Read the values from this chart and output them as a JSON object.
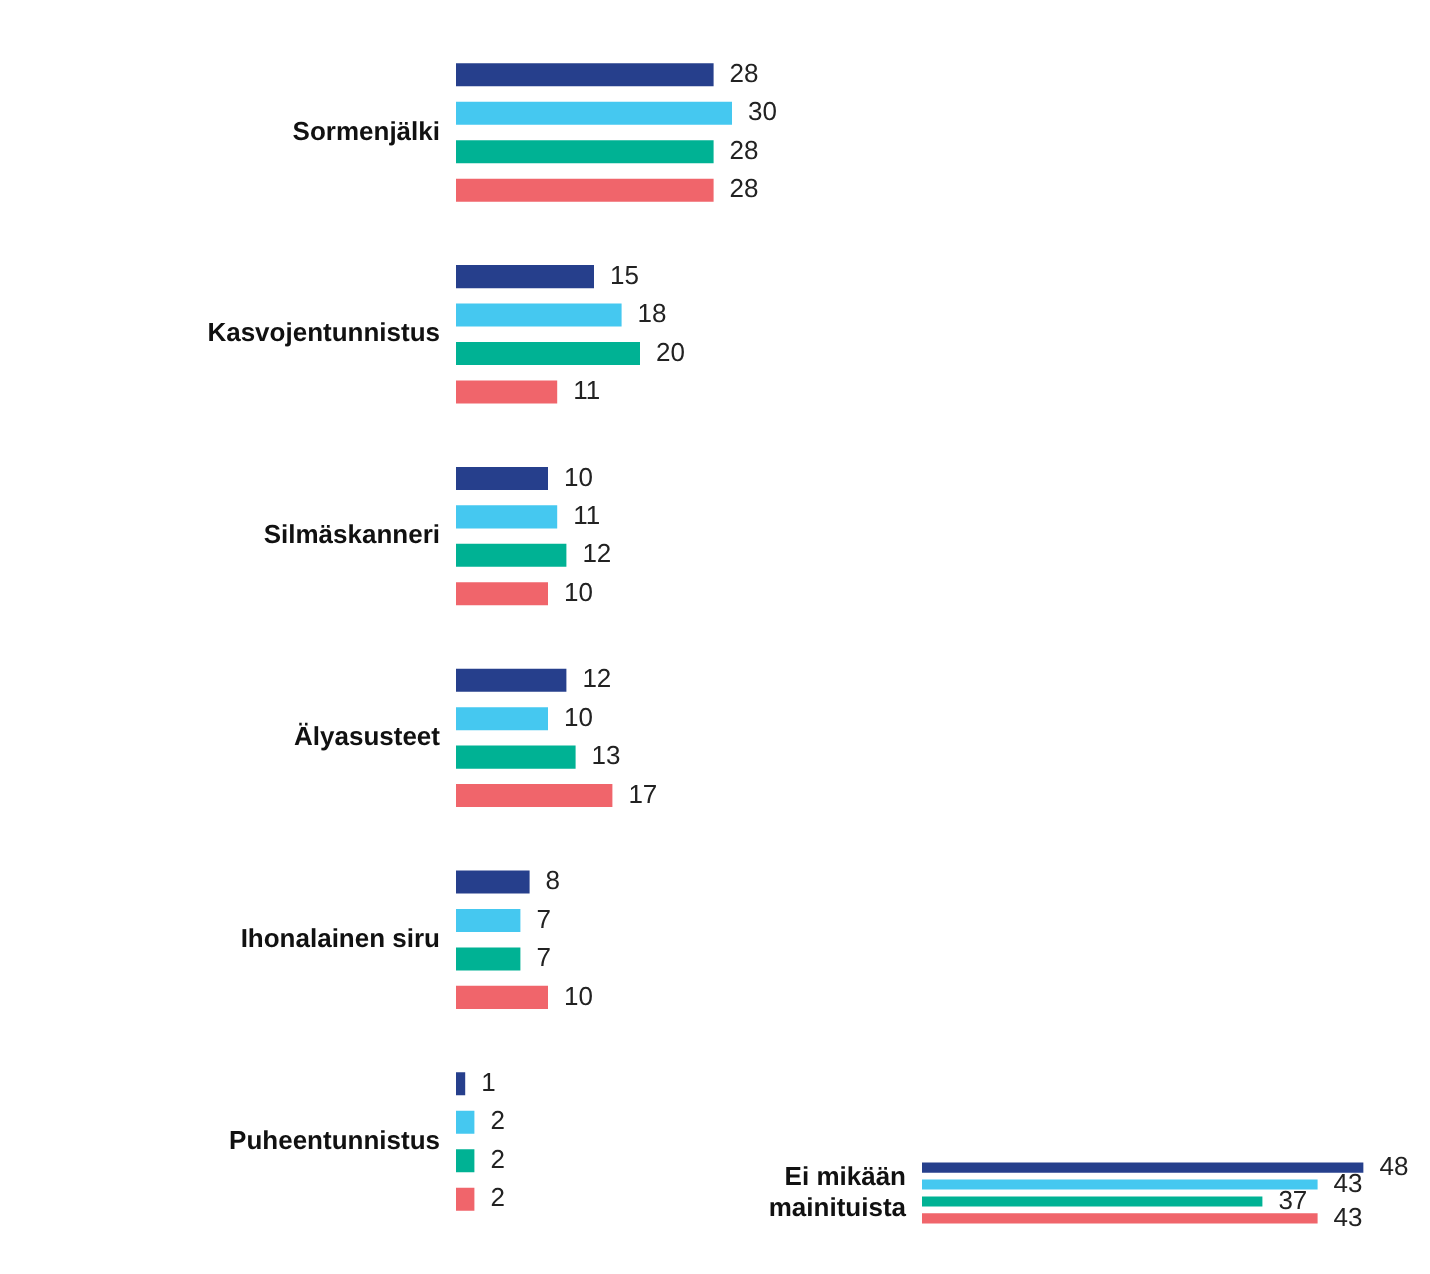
{
  "chart_data": [
    {
      "type": "bar",
      "orientation": "horizontal",
      "categories": [
        "Sormenjälki",
        "Kasvojentunnistus",
        "Silmäskanneri",
        "Älyasusteet",
        "Ihonalainen siru",
        "Puheentunnistus"
      ],
      "series": [
        {
          "color": "#263f8c",
          "values": [
            28,
            15,
            10,
            12,
            8,
            1
          ]
        },
        {
          "color": "#45c8f0",
          "values": [
            30,
            18,
            11,
            10,
            7,
            2
          ]
        },
        {
          "color": "#00b294",
          "values": [
            28,
            20,
            12,
            13,
            7,
            2
          ]
        },
        {
          "color": "#f0656b",
          "values": [
            28,
            11,
            10,
            17,
            10,
            2
          ]
        }
      ],
      "data_labels": true,
      "tick_labels": "y",
      "grid": false,
      "legend": false
    },
    {
      "type": "bar",
      "orientation": "horizontal",
      "categories": [
        "Ei mikään mainituista"
      ],
      "series": [
        {
          "color": "#263f8c",
          "values": [
            48
          ]
        },
        {
          "color": "#45c8f0",
          "values": [
            43
          ]
        },
        {
          "color": "#00b294",
          "values": [
            37
          ]
        },
        {
          "color": "#f0656b",
          "values": [
            43
          ]
        }
      ],
      "data_labels": true,
      "tick_labels": "y",
      "grid": false,
      "legend": false
    }
  ]
}
